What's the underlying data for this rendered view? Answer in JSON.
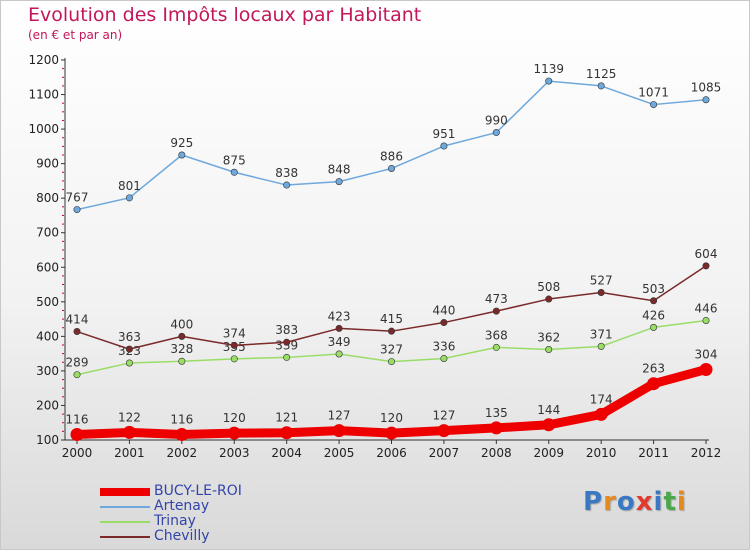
{
  "header": {
    "title": "Evolution des Impôts locaux par Habitant",
    "subtitle": "(en € et par an)"
  },
  "logo": {
    "text": "Proxiti",
    "colors": [
      "#3a78c3",
      "#e58a1f",
      "#3a78c3",
      "#e23b2e",
      "#3a78c3",
      "#4aa84a",
      "#e58a1f"
    ]
  },
  "chart_data": {
    "type": "line",
    "x": [
      2000,
      2001,
      2002,
      2003,
      2004,
      2005,
      2006,
      2007,
      2008,
      2009,
      2010,
      2011,
      2012
    ],
    "ylim": [
      100,
      1200
    ],
    "yticks": [
      100,
      200,
      300,
      400,
      500,
      600,
      700,
      800,
      900,
      1000,
      1100,
      1200
    ],
    "grid": false,
    "legend_position": "bottom-left",
    "series": [
      {
        "name": "BUCY-LE-ROI",
        "color": "#ee0000",
        "values": [
          116,
          122,
          116,
          120,
          121,
          127,
          120,
          127,
          135,
          144,
          174,
          263,
          304
        ]
      },
      {
        "name": "Artenay",
        "color": "#6fa8dc",
        "values": [
          767,
          801,
          925,
          875,
          838,
          848,
          886,
          951,
          990,
          1139,
          1125,
          1071,
          1085
        ]
      },
      {
        "name": "Trinay",
        "color": "#99dd66",
        "values": [
          289,
          323,
          328,
          335,
          339,
          349,
          327,
          336,
          368,
          362,
          371,
          426,
          446
        ]
      },
      {
        "name": "Chevilly",
        "color": "#7a2a2a",
        "values": [
          414,
          363,
          400,
          374,
          383,
          423,
          415,
          440,
          473,
          508,
          527,
          503,
          604
        ]
      }
    ]
  }
}
